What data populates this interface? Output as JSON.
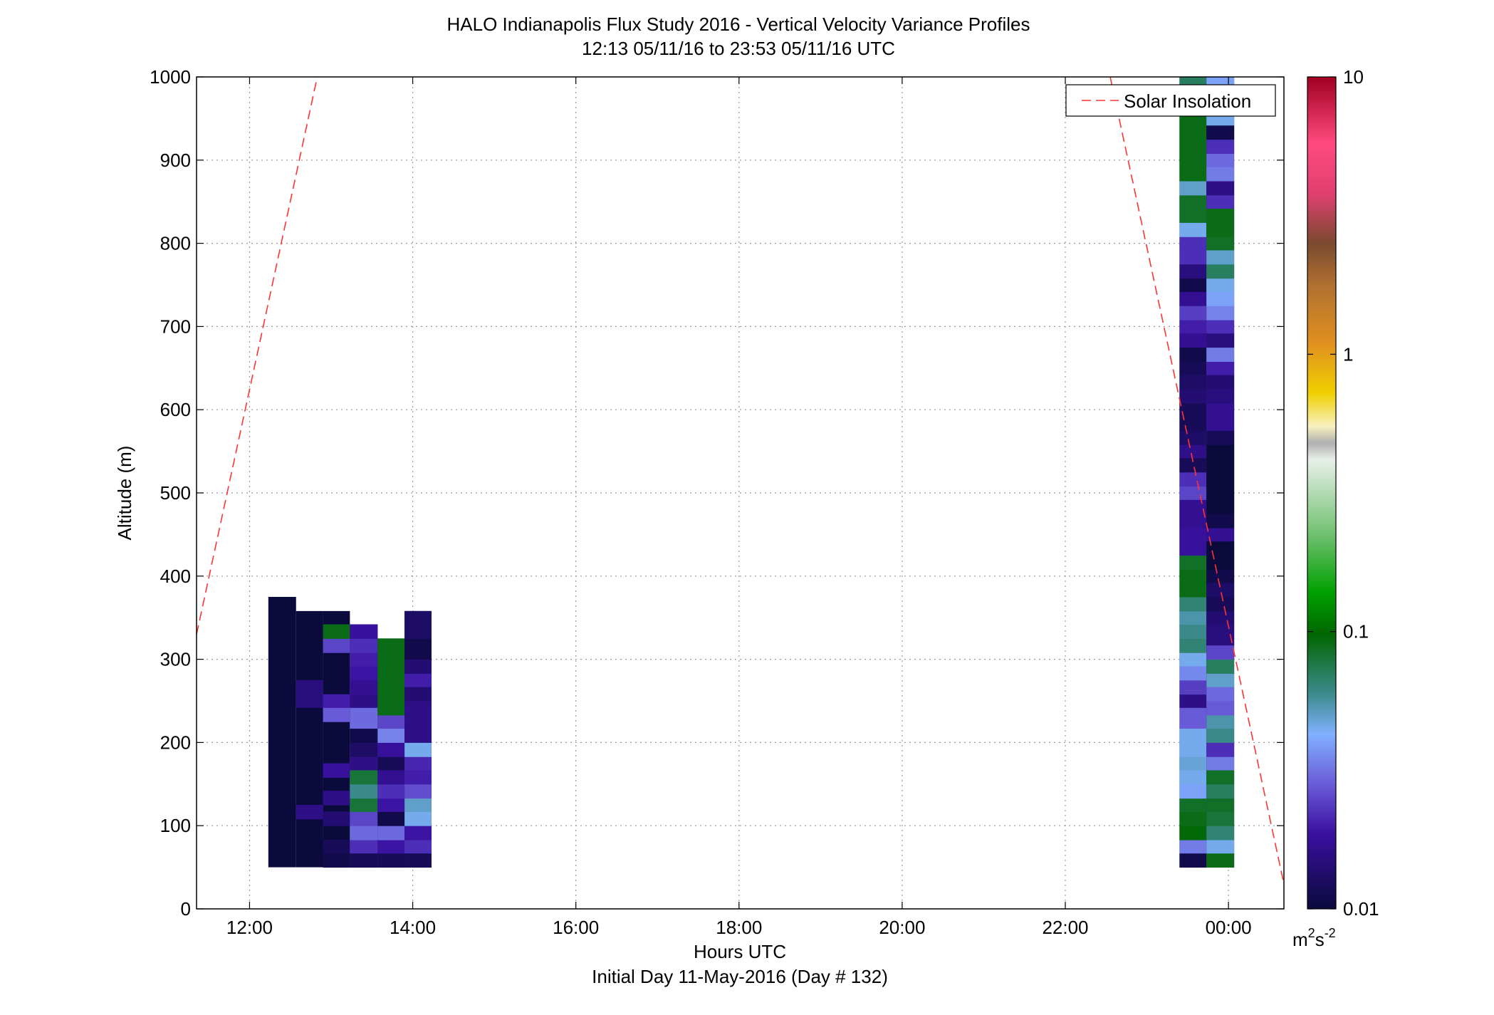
{
  "chart_data": {
    "type": "heatmap",
    "title": "HALO Indianapolis Flux Study 2016 - Vertical Velocity Variance Profiles",
    "subtitle": "12:13 05/11/16 to 23:53 05/11/16  UTC",
    "xlabel": "Hours UTC",
    "xlabel2": "Initial Day 11-May-2016 (Day # 132)",
    "ylabel": "Altitude (m)",
    "xlim": [
      11.35,
      24.68
    ],
    "ylim": [
      0,
      1000
    ],
    "grid": true,
    "x_ticks": [
      {
        "value": 12,
        "label": "12:00"
      },
      {
        "value": 14,
        "label": "14:00"
      },
      {
        "value": 16,
        "label": "16:00"
      },
      {
        "value": 18,
        "label": "18:00"
      },
      {
        "value": 20,
        "label": "20:00"
      },
      {
        "value": 22,
        "label": "22:00"
      },
      {
        "value": 24,
        "label": "00:00"
      }
    ],
    "y_ticks": [
      {
        "value": 0,
        "label": "0"
      },
      {
        "value": 100,
        "label": "100"
      },
      {
        "value": 200,
        "label": "200"
      },
      {
        "value": 300,
        "label": "300"
      },
      {
        "value": 400,
        "label": "400"
      },
      {
        "value": 500,
        "label": "500"
      },
      {
        "value": 600,
        "label": "600"
      },
      {
        "value": 700,
        "label": "700"
      },
      {
        "value": 800,
        "label": "800"
      },
      {
        "value": 900,
        "label": "900"
      },
      {
        "value": 1000,
        "label": "1000"
      }
    ],
    "colorbar": {
      "scale": "log",
      "range": [
        0.01,
        10
      ],
      "ticks": [
        {
          "value": 0.01,
          "label": "0.01"
        },
        {
          "value": 0.1,
          "label": "0.1"
        },
        {
          "value": 1,
          "label": "1"
        },
        {
          "value": 10,
          "label": "10"
        }
      ],
      "unit_base": "m",
      "unit_sup1": "2",
      "unit_mid": "s",
      "unit_sup2": "-2"
    },
    "legend": {
      "position": "top-right",
      "entries": [
        {
          "name": "Solar Insolation",
          "style": "dashed",
          "color": "#ff3333"
        }
      ]
    },
    "solar_insolation_line": [
      {
        "segment": [
          [
            11.35,
            330
          ],
          [
            12.83,
            1000
          ]
        ]
      },
      {
        "segment": [
          [
            22.55,
            1000
          ],
          [
            24.68,
            30
          ]
        ]
      }
    ],
    "bin_height_m": 16.7,
    "columns": [
      {
        "x0": 12.23,
        "x1": 12.57,
        "top": 375,
        "cells": []
      },
      {
        "x0": 12.57,
        "x1": 12.9,
        "top": 358,
        "cells": [
          [
            108,
            125,
            0.016
          ],
          [
            242,
            258,
            0.015
          ],
          [
            258,
            275,
            0.015
          ]
        ]
      },
      {
        "x0": 12.9,
        "x1": 13.23,
        "top": 358,
        "cells": [
          [
            50,
            67,
            0.011
          ],
          [
            67,
            83,
            0.012
          ],
          [
            100,
            117,
            0.014
          ],
          [
            125,
            142,
            0.016
          ],
          [
            158,
            175,
            0.018
          ],
          [
            225,
            242,
            0.028
          ],
          [
            242,
            258,
            0.02
          ],
          [
            308,
            325,
            0.025
          ],
          [
            325,
            342,
            0.09
          ]
        ]
      },
      {
        "x0": 13.23,
        "x1": 13.57,
        "top": 342,
        "cells": [
          [
            50,
            67,
            0.012
          ],
          [
            67,
            83,
            0.022
          ],
          [
            83,
            100,
            0.03
          ],
          [
            100,
            117,
            0.025
          ],
          [
            117,
            133,
            0.08
          ],
          [
            133,
            150,
            0.06
          ],
          [
            150,
            167,
            0.08
          ],
          [
            167,
            183,
            0.016
          ],
          [
            183,
            200,
            0.013
          ],
          [
            200,
            217,
            0.011
          ],
          [
            217,
            242,
            0.03
          ],
          [
            242,
            258,
            0.016
          ],
          [
            258,
            275,
            0.017
          ],
          [
            275,
            292,
            0.019
          ],
          [
            292,
            308,
            0.02
          ],
          [
            308,
            325,
            0.022
          ],
          [
            325,
            342,
            0.018
          ]
        ]
      },
      {
        "x0": 13.57,
        "x1": 13.9,
        "top": 325,
        "cells": [
          [
            50,
            67,
            0.012
          ],
          [
            67,
            83,
            0.019
          ],
          [
            83,
            100,
            0.03
          ],
          [
            100,
            117,
            0.011
          ],
          [
            117,
            133,
            0.019
          ],
          [
            133,
            150,
            0.022
          ],
          [
            150,
            167,
            0.017
          ],
          [
            167,
            183,
            0.012
          ],
          [
            183,
            200,
            0.018
          ],
          [
            200,
            217,
            0.034
          ],
          [
            217,
            233,
            0.025
          ],
          [
            233,
            325,
            0.09
          ]
        ]
      },
      {
        "x0": 13.9,
        "x1": 14.23,
        "top": 358,
        "cells": [
          [
            50,
            67,
            0.012
          ],
          [
            67,
            83,
            0.022
          ],
          [
            83,
            100,
            0.019
          ],
          [
            100,
            117,
            0.045
          ],
          [
            117,
            133,
            0.05
          ],
          [
            133,
            150,
            0.026
          ],
          [
            150,
            167,
            0.02
          ],
          [
            167,
            183,
            0.021
          ],
          [
            183,
            200,
            0.045
          ],
          [
            200,
            217,
            0.016
          ],
          [
            217,
            233,
            0.016
          ],
          [
            233,
            250,
            0.016
          ],
          [
            250,
            267,
            0.014
          ],
          [
            267,
            283,
            0.02
          ],
          [
            283,
            300,
            0.014
          ],
          [
            300,
            325,
            0.011
          ],
          [
            325,
            358,
            0.013
          ]
        ]
      },
      {
        "x0": 23.4,
        "x1": 23.73,
        "top": 1000,
        "cells": [
          [
            50,
            67,
            0.011
          ],
          [
            67,
            83,
            0.033
          ],
          [
            83,
            100,
            0.095
          ],
          [
            100,
            117,
            0.09
          ],
          [
            117,
            133,
            0.085
          ],
          [
            133,
            150,
            0.04
          ],
          [
            150,
            167,
            0.045
          ],
          [
            167,
            183,
            0.048
          ],
          [
            183,
            217,
            0.045
          ],
          [
            217,
            242,
            0.028
          ],
          [
            242,
            258,
            0.016
          ],
          [
            258,
            275,
            0.024
          ],
          [
            275,
            292,
            0.035
          ],
          [
            292,
            308,
            0.045
          ],
          [
            308,
            325,
            0.065
          ],
          [
            325,
            342,
            0.06
          ],
          [
            342,
            358,
            0.055
          ],
          [
            358,
            375,
            0.065
          ],
          [
            375,
            408,
            0.09
          ],
          [
            408,
            425,
            0.085
          ],
          [
            425,
            442,
            0.018
          ],
          [
            442,
            458,
            0.018
          ],
          [
            458,
            475,
            0.017
          ],
          [
            475,
            492,
            0.017
          ],
          [
            492,
            508,
            0.025
          ],
          [
            508,
            525,
            0.022
          ],
          [
            525,
            542,
            0.012
          ],
          [
            542,
            558,
            0.016
          ],
          [
            558,
            575,
            0.013
          ],
          [
            575,
            608,
            0.012
          ],
          [
            608,
            625,
            0.014
          ],
          [
            625,
            642,
            0.013
          ],
          [
            642,
            658,
            0.012
          ],
          [
            658,
            675,
            0.011
          ],
          [
            675,
            692,
            0.017
          ],
          [
            692,
            708,
            0.02
          ],
          [
            708,
            725,
            0.024
          ],
          [
            725,
            742,
            0.017
          ],
          [
            742,
            758,
            0.011
          ],
          [
            758,
            775,
            0.015
          ],
          [
            775,
            792,
            0.022
          ],
          [
            792,
            808,
            0.022
          ],
          [
            808,
            825,
            0.045
          ],
          [
            825,
            858,
            0.085
          ],
          [
            858,
            875,
            0.05
          ],
          [
            875,
            975,
            0.09
          ],
          [
            975,
            1000,
            0.07
          ]
        ]
      },
      {
        "x0": 23.73,
        "x1": 24.07,
        "top": 1000,
        "cells": [
          [
            50,
            67,
            0.09
          ],
          [
            67,
            83,
            0.045
          ],
          [
            83,
            100,
            0.065
          ],
          [
            100,
            117,
            0.08
          ],
          [
            117,
            133,
            0.085
          ],
          [
            133,
            150,
            0.07
          ],
          [
            150,
            167,
            0.085
          ],
          [
            167,
            183,
            0.033
          ],
          [
            183,
            200,
            0.022
          ],
          [
            200,
            217,
            0.06
          ],
          [
            217,
            233,
            0.055
          ],
          [
            233,
            250,
            0.028
          ],
          [
            250,
            267,
            0.03
          ],
          [
            267,
            283,
            0.05
          ],
          [
            283,
            300,
            0.07
          ],
          [
            300,
            317,
            0.025
          ],
          [
            317,
            342,
            0.015
          ],
          [
            342,
            358,
            0.014
          ],
          [
            358,
            375,
            0.012
          ],
          [
            375,
            392,
            0.013
          ],
          [
            392,
            408,
            0.011
          ],
          [
            408,
            442,
            0.01
          ],
          [
            442,
            458,
            0.017
          ],
          [
            458,
            475,
            0.011
          ],
          [
            475,
            558,
            0.01
          ],
          [
            558,
            575,
            0.012
          ],
          [
            575,
            608,
            0.017
          ],
          [
            608,
            625,
            0.015
          ],
          [
            625,
            642,
            0.014
          ],
          [
            642,
            658,
            0.02
          ],
          [
            658,
            675,
            0.033
          ],
          [
            675,
            692,
            0.015
          ],
          [
            692,
            708,
            0.022
          ],
          [
            708,
            725,
            0.034
          ],
          [
            725,
            742,
            0.04
          ],
          [
            742,
            758,
            0.045
          ],
          [
            758,
            775,
            0.07
          ],
          [
            775,
            792,
            0.05
          ],
          [
            792,
            808,
            0.085
          ],
          [
            808,
            825,
            0.09
          ],
          [
            825,
            842,
            0.09
          ],
          [
            842,
            858,
            0.022
          ],
          [
            858,
            875,
            0.016
          ],
          [
            875,
            892,
            0.033
          ],
          [
            892,
            908,
            0.03
          ],
          [
            908,
            925,
            0.022
          ],
          [
            925,
            942,
            0.011
          ],
          [
            942,
            975,
            0.045
          ],
          [
            975,
            1000,
            0.04
          ]
        ]
      }
    ]
  }
}
